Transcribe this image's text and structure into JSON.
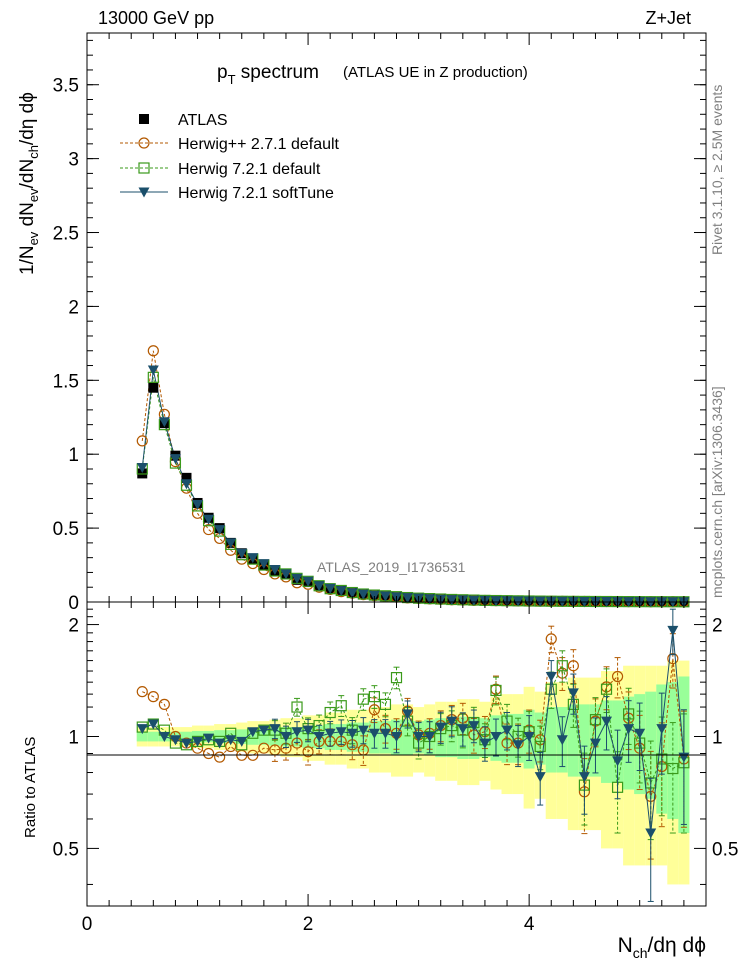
{
  "header": {
    "left": "13000 GeV pp",
    "right": "Z+Jet"
  },
  "side": {
    "rivet": "Rivet 3.1.10, ≥ 2.5M events",
    "mcplots": "mcplots.cern.ch [arXiv:1306.3436]"
  },
  "watermark": "ATLAS_2019_I1736531",
  "chart_data": [
    {
      "type": "scatter",
      "panel": "main",
      "title": "pT spectrum",
      "title_main": "p",
      "title_sub": "T",
      "title_rest": " spectrum",
      "subtitle": "(ATLAS UE in Z production)",
      "ylabel": "1/Nev dNev/dNch/dη dϕ",
      "ylabel_parts": [
        "1/N",
        "ev",
        " dN",
        "ev",
        "/dN",
        "ch",
        "/dη dϕ"
      ],
      "xlim": [
        0,
        5.6
      ],
      "ylim": [
        0,
        3.85
      ],
      "yticks": [
        "0",
        "0.5",
        "1",
        "1.5",
        "2",
        "2.5",
        "3",
        "3.5"
      ],
      "x": [
        0.5,
        0.6,
        0.7,
        0.8,
        0.9,
        1.0,
        1.1,
        1.2,
        1.3,
        1.4,
        1.5,
        1.6,
        1.7,
        1.8,
        1.9,
        2.0,
        2.1,
        2.2,
        2.3,
        2.4,
        2.5,
        2.6,
        2.7,
        2.8,
        2.9,
        3.0,
        3.1,
        3.2,
        3.3,
        3.4,
        3.5,
        3.6,
        3.7,
        3.8,
        3.9,
        4.0,
        4.1,
        4.2,
        4.3,
        4.4,
        4.5,
        4.6,
        4.7,
        4.8,
        4.9,
        5.0,
        5.1,
        5.2,
        5.3,
        5.4
      ],
      "series": [
        {
          "name": "ATLAS",
          "marker": "square-filled",
          "color": "#000000",
          "values": [
            0.87,
            1.45,
            1.21,
            0.99,
            0.84,
            0.67,
            0.57,
            0.5,
            0.4,
            0.33,
            0.29,
            0.25,
            0.21,
            0.19,
            0.15,
            0.135,
            0.11,
            0.09,
            0.075,
            0.062,
            0.052,
            0.045,
            0.04,
            0.034,
            0.029,
            0.025,
            0.022,
            0.019,
            0.016,
            0.014,
            0.012,
            0.011,
            0.0095,
            0.0085,
            0.0075,
            0.0065,
            0.0058,
            0.0052,
            0.0046,
            0.0041,
            0.0037,
            0.0033,
            0.003,
            0.0027,
            0.0024,
            0.0022,
            0.002,
            0.0018,
            0.0016,
            0.0014
          ]
        },
        {
          "name": "Herwig++ 2.7.1 default",
          "marker": "circle-open",
          "color": "#b35900",
          "line": "dashed",
          "values": [
            1.09,
            1.7,
            1.27,
            0.95,
            0.77,
            0.6,
            0.49,
            0.43,
            0.35,
            0.29,
            0.26,
            0.22,
            0.19,
            0.17,
            0.13,
            0.12,
            0.1,
            0.085,
            0.07,
            0.06,
            0.05,
            0.043,
            0.038,
            0.033,
            0.028,
            0.024,
            0.021,
            0.018,
            0.015,
            0.013,
            0.011,
            0.01,
            0.009,
            0.008,
            0.007,
            0.006,
            0.0055,
            0.005,
            0.0045,
            0.004,
            0.0035,
            0.003,
            0.0028,
            0.0025,
            0.0022,
            0.002,
            0.0018,
            0.0016,
            0.0015,
            0.0013
          ]
        },
        {
          "name": "Herwig 7.2.1 default",
          "marker": "square-open",
          "color": "#3a9a1a",
          "line": "dashed",
          "values": [
            0.9,
            1.52,
            1.2,
            0.94,
            0.79,
            0.65,
            0.55,
            0.48,
            0.39,
            0.32,
            0.29,
            0.25,
            0.21,
            0.19,
            0.16,
            0.14,
            0.11,
            0.09,
            0.078,
            0.064,
            0.054,
            0.047,
            0.042,
            0.036,
            0.03,
            0.026,
            0.023,
            0.02,
            0.017,
            0.015,
            0.013,
            0.011,
            0.0098,
            0.0088,
            0.0078,
            0.0068,
            0.006,
            0.0054,
            0.0048,
            0.0043,
            0.0039,
            0.0035,
            0.0032,
            0.0029,
            0.0026,
            0.0023,
            0.0021,
            0.0019,
            0.0017,
            0.0015
          ]
        },
        {
          "name": "Herwig 7.2.1 softTune",
          "marker": "triangle-down-filled",
          "color": "#1b4f6b",
          "line": "solid",
          "values": [
            0.91,
            1.57,
            1.22,
            0.97,
            0.8,
            0.66,
            0.56,
            0.49,
            0.4,
            0.33,
            0.3,
            0.26,
            0.22,
            0.19,
            0.16,
            0.14,
            0.11,
            0.092,
            0.077,
            0.063,
            0.053,
            0.046,
            0.041,
            0.035,
            0.03,
            0.026,
            0.022,
            0.019,
            0.016,
            0.014,
            0.012,
            0.011,
            0.0096,
            0.0086,
            0.0076,
            0.0066,
            0.0059,
            0.0053,
            0.0047,
            0.0042,
            0.0038,
            0.0034,
            0.0031,
            0.0028,
            0.0025,
            0.0023,
            0.002,
            0.0018,
            0.0016,
            0.0014
          ]
        }
      ]
    },
    {
      "type": "scatter",
      "panel": "ratio",
      "ylabel": "Ratio to ATLAS",
      "xlabel": "Nch/dη dϕ",
      "xlabel_parts": [
        "N",
        "ch",
        "/dη dϕ"
      ],
      "xlim": [
        0,
        5.6
      ],
      "ylim": [
        0.35,
        2.3
      ],
      "yticks": [
        "0.5",
        "1",
        "2"
      ],
      "xticks": [
        "0",
        "2",
        "4"
      ],
      "x": [
        0.5,
        0.6,
        0.7,
        0.8,
        0.9,
        1.0,
        1.1,
        1.2,
        1.3,
        1.4,
        1.5,
        1.6,
        1.7,
        1.8,
        1.9,
        2.0,
        2.1,
        2.2,
        2.3,
        2.4,
        2.5,
        2.6,
        2.7,
        2.8,
        2.9,
        3.0,
        3.1,
        3.2,
        3.3,
        3.4,
        3.5,
        3.6,
        3.7,
        3.8,
        3.9,
        4.0,
        4.1,
        4.2,
        4.3,
        4.4,
        4.5,
        4.6,
        4.7,
        4.8,
        4.9,
        5.0,
        5.1,
        5.2,
        5.3,
        5.4
      ],
      "band_stat": [
        0.03,
        0.03,
        0.03,
        0.03,
        0.03,
        0.035,
        0.035,
        0.04,
        0.04,
        0.045,
        0.05,
        0.05,
        0.055,
        0.06,
        0.06,
        0.07,
        0.07,
        0.08,
        0.08,
        0.09,
        0.09,
        0.1,
        0.1,
        0.11,
        0.11,
        0.1,
        0.11,
        0.12,
        0.12,
        0.13,
        0.13,
        0.12,
        0.14,
        0.15,
        0.15,
        0.18,
        0.16,
        0.2,
        0.2,
        0.22,
        0.22,
        0.22,
        0.25,
        0.25,
        0.28,
        0.3,
        0.32,
        0.38,
        0.4,
        0.45
      ],
      "band_total": [
        0.06,
        0.06,
        0.06,
        0.06,
        0.06,
        0.07,
        0.07,
        0.08,
        0.08,
        0.09,
        0.1,
        0.1,
        0.11,
        0.12,
        0.12,
        0.14,
        0.14,
        0.16,
        0.16,
        0.18,
        0.18,
        0.2,
        0.2,
        0.22,
        0.22,
        0.2,
        0.22,
        0.24,
        0.24,
        0.26,
        0.26,
        0.24,
        0.28,
        0.3,
        0.3,
        0.36,
        0.32,
        0.4,
        0.4,
        0.44,
        0.44,
        0.44,
        0.5,
        0.5,
        0.55,
        0.55,
        0.55,
        0.55,
        0.6,
        0.6
      ],
      "series": [
        {
          "name": "Herwig++ 2.7.1 default",
          "values": [
            1.32,
            1.28,
            1.22,
            1.0,
            0.96,
            0.93,
            0.9,
            0.88,
            0.94,
            0.89,
            0.89,
            0.93,
            0.92,
            0.93,
            0.96,
            0.91,
            0.97,
            0.97,
            0.97,
            0.95,
            0.92,
            1.18,
            1.05,
            1.02,
            1.17,
            1.01,
            1.02,
            1.07,
            1.11,
            1.12,
            1.01,
            1.03,
            1.34,
            0.96,
            0.96,
            1.04,
            0.98,
            1.83,
            1.48,
            1.55,
            0.71,
            1.1,
            1.36,
            1.45,
            1.12,
            0.93,
            0.69,
            0.83,
            1.62,
            0.87
          ]
        },
        {
          "name": "Herwig 7.2.1 default",
          "values": [
            1.06,
            1.08,
            1.04,
            0.96,
            0.95,
            0.97,
            0.98,
            0.97,
            1.02,
            0.95,
            1.02,
            1.04,
            1.04,
            1.02,
            1.2,
            1.05,
            1.07,
            1.16,
            1.21,
            1.04,
            1.26,
            1.28,
            1.22,
            1.44,
            1.1,
            0.96,
            1.0,
            1.05,
            1.07,
            1.04,
            1.09,
            0.98,
            1.33,
            1.1,
            1.0,
            1.03,
            0.94,
            1.34,
            1.55,
            1.22,
            0.74,
            1.11,
            1.34,
            0.73,
            1.15,
            0.96,
            0.75,
            0.87,
            0.82,
            0.85
          ]
        },
        {
          "name": "Herwig 7.2.1 softTune",
          "values": [
            1.05,
            1.08,
            1.0,
            0.98,
            0.96,
            0.97,
            0.99,
            0.96,
            0.98,
            0.97,
            1.03,
            1.04,
            1.05,
            1.0,
            1.03,
            1.04,
            1.0,
            1.02,
            1.03,
            1.02,
            1.04,
            1.02,
            1.02,
            1.0,
            1.15,
            1.0,
            1.0,
            1.06,
            1.1,
            1.05,
            1.07,
            0.96,
            1.0,
            1.04,
            0.95,
            1.0,
            0.78,
            1.45,
            0.98,
            1.31,
            0.78,
            0.96,
            1.1,
            0.86,
            1.05,
            1.02,
            0.55,
            1.05,
            1.93,
            0.88
          ]
        }
      ]
    }
  ]
}
